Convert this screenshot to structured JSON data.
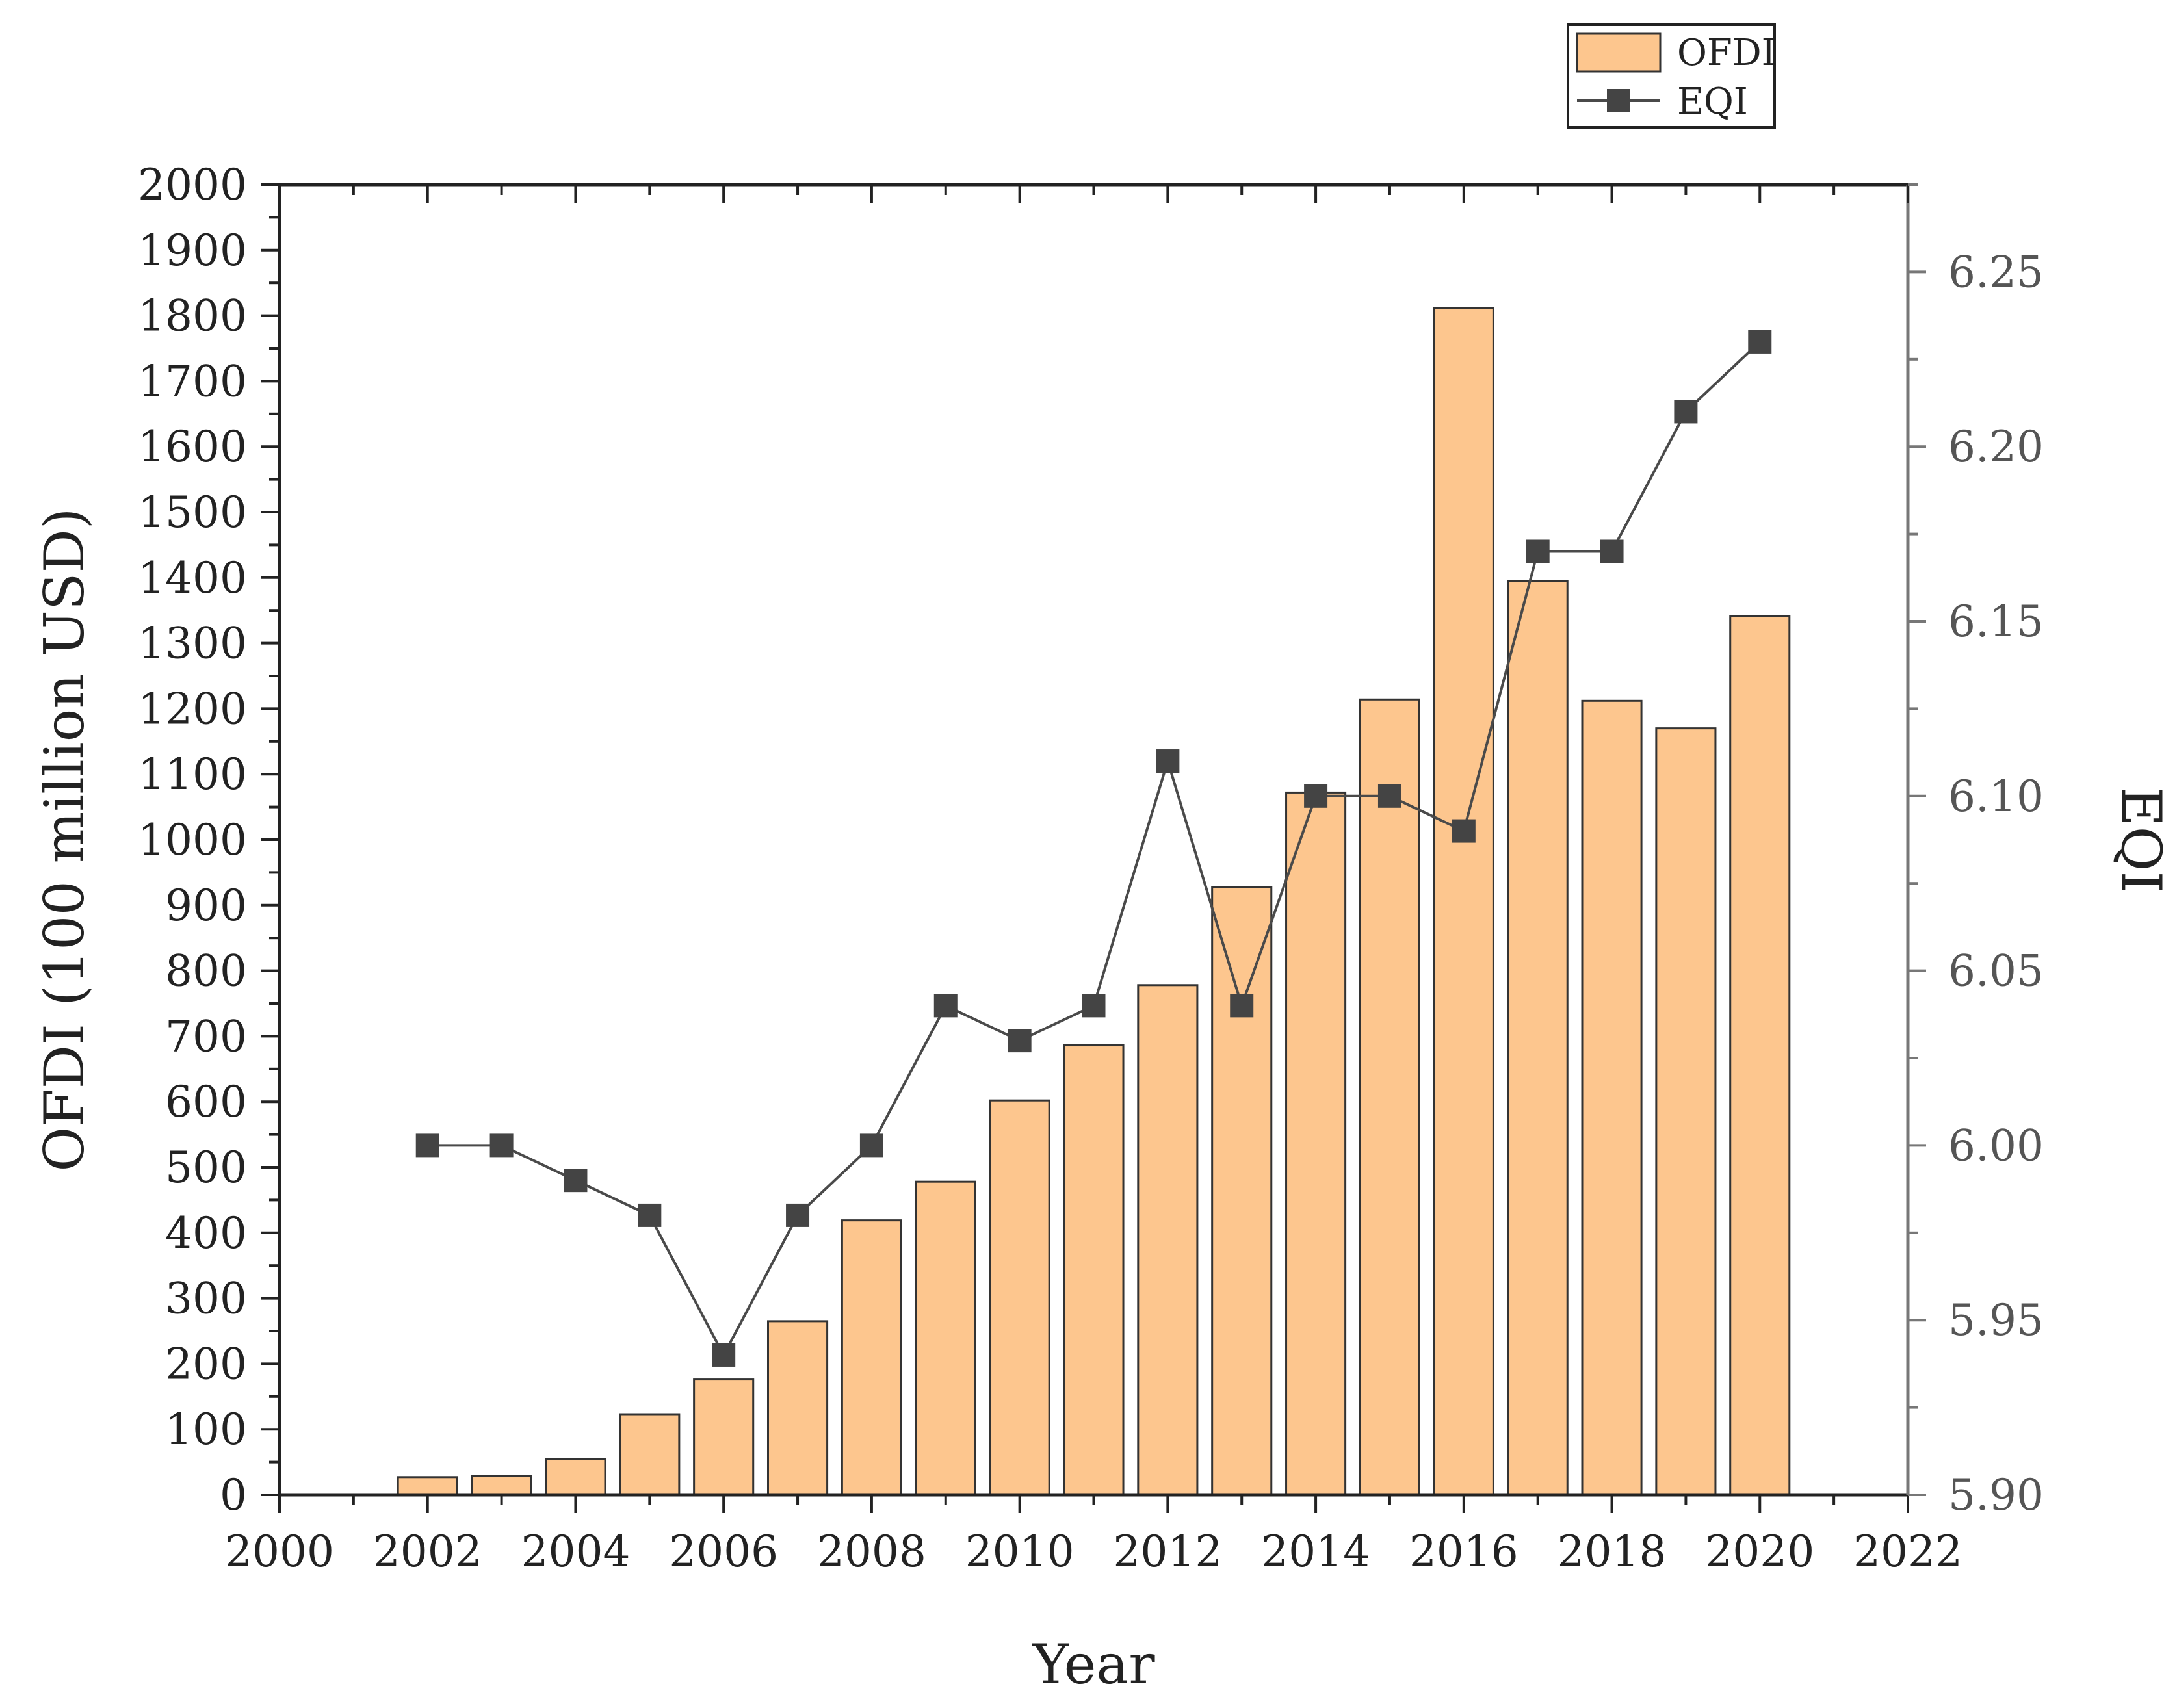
{
  "chart_data": {
    "type": "bar+line",
    "xlabel": "Year",
    "ylabel": "OFDI (100 million USD)",
    "y2label": "EQI",
    "xlim": [
      2000,
      2022
    ],
    "xticks": [
      "2000",
      "2002",
      "2004",
      "2006",
      "2008",
      "2010",
      "2012",
      "2014",
      "2016",
      "2018",
      "2020",
      "2022"
    ],
    "ylim": [
      0,
      2000
    ],
    "yticks": [
      "0",
      "100",
      "200",
      "300",
      "400",
      "500",
      "600",
      "700",
      "800",
      "900",
      "1000",
      "1100",
      "1200",
      "1300",
      "1400",
      "1500",
      "1600",
      "1700",
      "1800",
      "1900",
      "2000"
    ],
    "y2lim": [
      5.9,
      6.275
    ],
    "y2ticks": [
      "5.90",
      "5.95",
      "6.00",
      "6.05",
      "6.10",
      "6.15",
      "6.20",
      "6.25"
    ],
    "legend_position": "top-right, above plot",
    "series": [
      {
        "name": "OFDI",
        "type": "bar",
        "axis": "left",
        "color": "#FDC68E",
        "x": [
          2002,
          2003,
          2004,
          2005,
          2006,
          2007,
          2008,
          2009,
          2010,
          2011,
          2012,
          2013,
          2014,
          2015,
          2016,
          2017,
          2018,
          2019,
          2020
        ],
        "values": [
          27,
          29,
          55,
          123,
          176,
          265,
          419,
          478,
          602,
          686,
          778,
          928,
          1072,
          1214,
          1812,
          1395,
          1212,
          1170,
          1341
        ]
      },
      {
        "name": "EQI",
        "type": "line",
        "axis": "right",
        "color": "#4A4A4A",
        "marker": "square",
        "x": [
          2002,
          2003,
          2004,
          2005,
          2006,
          2007,
          2008,
          2009,
          2010,
          2011,
          2012,
          2013,
          2014,
          2015,
          2016,
          2017,
          2018,
          2019,
          2020
        ],
        "values": [
          6.0,
          6.0,
          5.99,
          5.98,
          5.94,
          5.98,
          6.0,
          6.04,
          6.03,
          6.04,
          6.11,
          6.04,
          6.1,
          6.1,
          6.09,
          6.17,
          6.17,
          6.21,
          6.23
        ]
      }
    ],
    "colors": {
      "bar_fill": "#FDC68E",
      "bar_stroke": "#333333",
      "line": "#4A4A4A",
      "marker": "#444444",
      "axis": "#222222",
      "right_axis": "#777777"
    }
  }
}
